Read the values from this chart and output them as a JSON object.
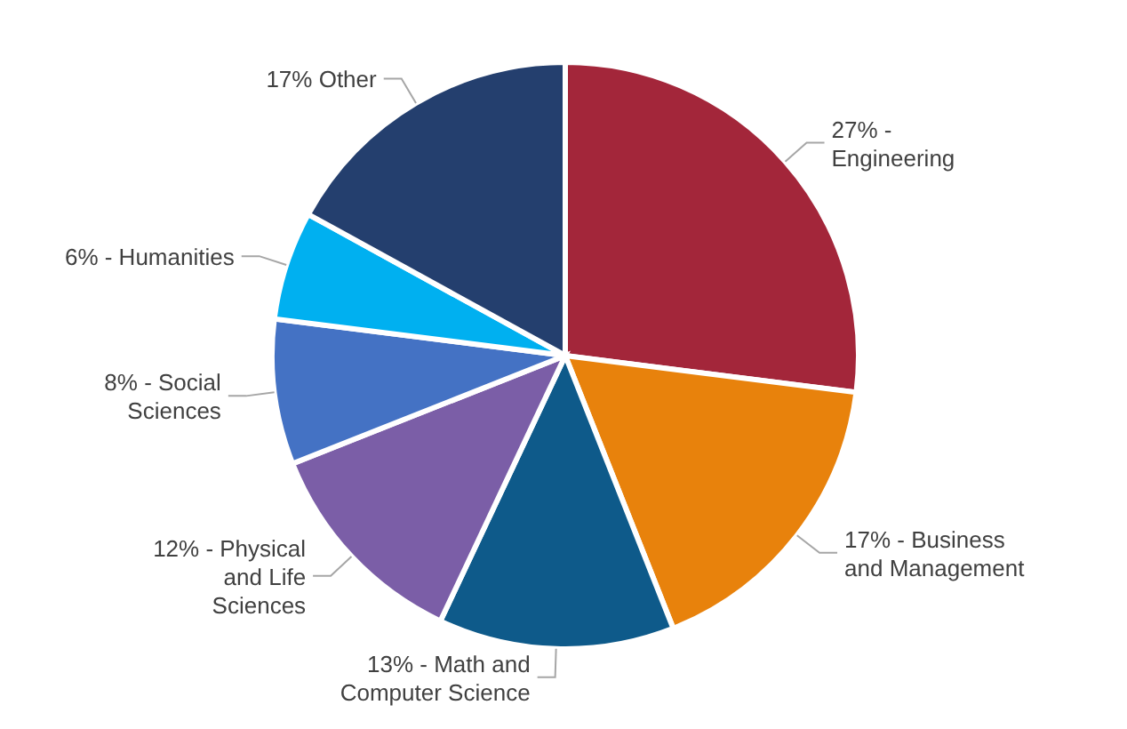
{
  "chart_data": {
    "type": "pie",
    "categories": [
      "27% - Engineering",
      "17% - Business and Management",
      "13% - Math and Computer Science",
      "12% - Physical and Life Sciences",
      "8% - Social Sciences",
      "6% - Humanities",
      "17% Other"
    ],
    "values": [
      27,
      17,
      13,
      12,
      8,
      6,
      17
    ],
    "colors": [
      "#a3263a",
      "#e8820c",
      "#0e5a8a",
      "#7b5ea7",
      "#4472c4",
      "#00b0f0",
      "#243f6e"
    ],
    "legend": false
  }
}
